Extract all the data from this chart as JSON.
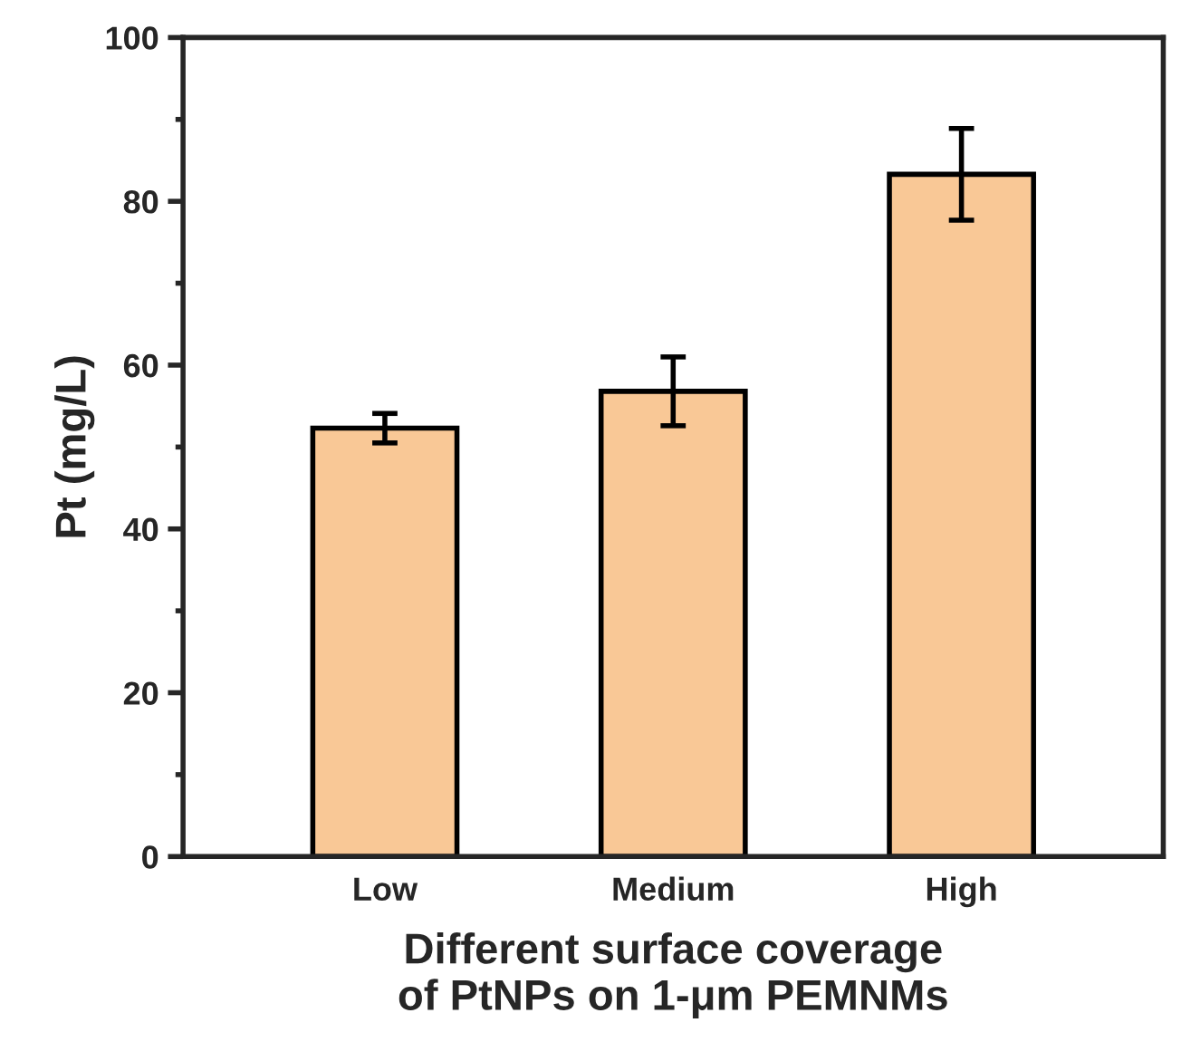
{
  "chart_data": {
    "type": "bar",
    "xlabel": "Different surface coverage\nof PtNPs on 1-μm PEMNMs",
    "ylabel": "Pt (mg/L)",
    "categories": [
      "Low",
      "Medium",
      "High"
    ],
    "values": [
      52.3,
      56.8,
      83.3
    ],
    "errors": [
      1.8,
      4.2,
      5.6
    ],
    "color": "#f9c896",
    "ylim": [
      0,
      100
    ],
    "yticks": [
      0,
      20,
      40,
      60,
      80,
      100
    ],
    "grid": false
  }
}
